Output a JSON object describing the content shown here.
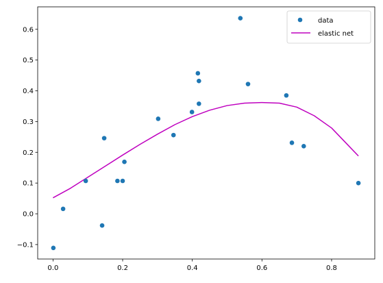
{
  "chart_data": {
    "type": "scatter",
    "title": "",
    "xlabel": "",
    "ylabel": "",
    "xlim": [
      -0.044,
      0.924
    ],
    "ylim": [
      -0.147,
      0.673
    ],
    "grid": false,
    "legend_position": "top-right",
    "x_ticks": [
      0.0,
      0.2,
      0.4,
      0.6,
      0.8
    ],
    "x_tick_labels": [
      "0.0",
      "0.2",
      "0.4",
      "0.6",
      "0.8"
    ],
    "y_ticks": [
      -0.1,
      0.0,
      0.1,
      0.2,
      0.3,
      0.4,
      0.5,
      0.6
    ],
    "y_tick_labels": [
      "−0.1",
      "0.0",
      "0.1",
      "0.2",
      "0.3",
      "0.4",
      "0.5",
      "0.6"
    ],
    "series": [
      {
        "name": "data",
        "kind": "scatter",
        "color": "#1f77b4",
        "points": [
          [
            0.001,
            -0.111
          ],
          [
            0.029,
            0.016
          ],
          [
            0.094,
            0.107
          ],
          [
            0.141,
            -0.038
          ],
          [
            0.147,
            0.246
          ],
          [
            0.185,
            0.107
          ],
          [
            0.2,
            0.107
          ],
          [
            0.205,
            0.169
          ],
          [
            0.302,
            0.309
          ],
          [
            0.346,
            0.256
          ],
          [
            0.399,
            0.331
          ],
          [
            0.416,
            0.457
          ],
          [
            0.419,
            0.358
          ],
          [
            0.419,
            0.432
          ],
          [
            0.538,
            0.636
          ],
          [
            0.56,
            0.422
          ],
          [
            0.67,
            0.385
          ],
          [
            0.686,
            0.231
          ],
          [
            0.72,
            0.22
          ],
          [
            0.877,
            0.1
          ]
        ]
      },
      {
        "name": "elastic net",
        "kind": "line",
        "color": "#bf00bf",
        "points": [
          [
            0.0,
            0.052
          ],
          [
            0.05,
            0.083
          ],
          [
            0.1,
            0.119
          ],
          [
            0.15,
            0.155
          ],
          [
            0.2,
            0.191
          ],
          [
            0.25,
            0.226
          ],
          [
            0.3,
            0.259
          ],
          [
            0.35,
            0.29
          ],
          [
            0.4,
            0.316
          ],
          [
            0.45,
            0.337
          ],
          [
            0.5,
            0.352
          ],
          [
            0.55,
            0.36
          ],
          [
            0.6,
            0.362
          ],
          [
            0.65,
            0.36
          ],
          [
            0.7,
            0.347
          ],
          [
            0.75,
            0.319
          ],
          [
            0.8,
            0.279
          ],
          [
            0.85,
            0.22
          ],
          [
            0.877,
            0.188
          ]
        ]
      }
    ]
  }
}
